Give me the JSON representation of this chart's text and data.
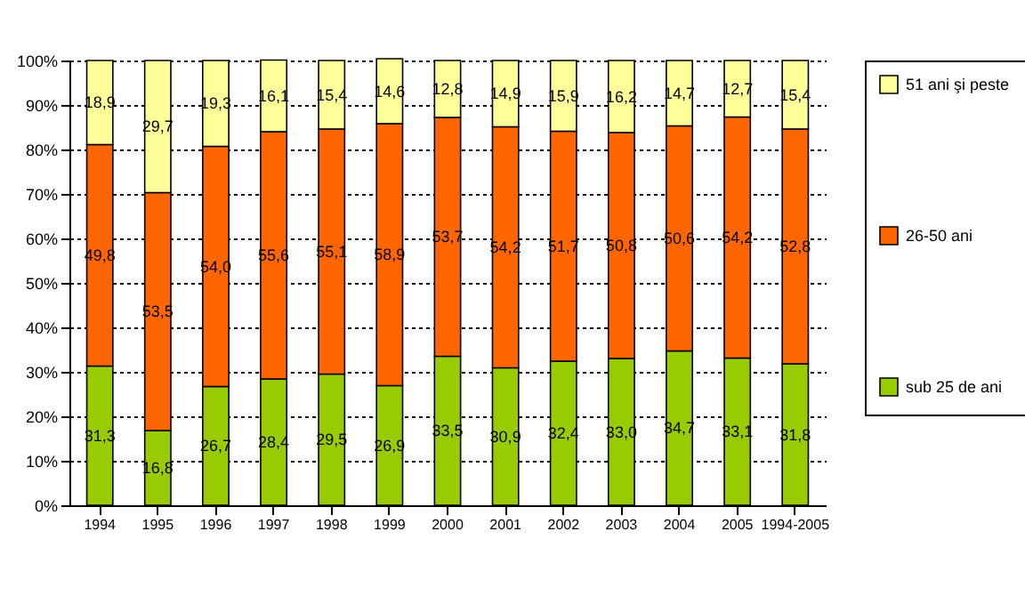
{
  "chart_data": {
    "type": "bar",
    "stacked": true,
    "grid": "y",
    "legend": "right",
    "categories": [
      "1994",
      "1995",
      "1996",
      "1997",
      "1998",
      "1999",
      "2000",
      "2001",
      "2002",
      "2003",
      "2004",
      "2005",
      "1994-2005"
    ],
    "ylim": [
      0,
      100
    ],
    "yticks": [
      {
        "value": 0,
        "label": "0%"
      },
      {
        "value": 10,
        "label": "10%"
      },
      {
        "value": 20,
        "label": "20%"
      },
      {
        "value": 30,
        "label": "30%"
      },
      {
        "value": 40,
        "label": "40%"
      },
      {
        "value": 50,
        "label": "50%"
      },
      {
        "value": 60,
        "label": "60%"
      },
      {
        "value": 70,
        "label": "70%"
      },
      {
        "value": 80,
        "label": "80%"
      },
      {
        "value": 90,
        "label": "90%"
      },
      {
        "value": 100,
        "label": "100%"
      }
    ],
    "series": [
      {
        "name": "sub 25 de ani",
        "color": "#99cc00",
        "values": [
          31.3,
          16.8,
          26.7,
          28.4,
          29.5,
          26.9,
          33.5,
          30.9,
          32.4,
          33.0,
          34.7,
          33.1,
          31.8
        ],
        "value_labels": [
          "31,3",
          "16,8",
          "26,7",
          "28,4",
          "29,5",
          "26,9",
          "33,5",
          "30,9",
          "32,4",
          "33,0",
          "34,7",
          "33,1",
          "31,8"
        ]
      },
      {
        "name": "26-50 ani",
        "color": "#ff6600",
        "values": [
          49.8,
          53.5,
          54.0,
          55.6,
          55.1,
          58.9,
          53.7,
          54.2,
          51.7,
          50.8,
          50.6,
          54.2,
          52.8
        ],
        "value_labels": [
          "49,8",
          "53,5",
          "54,0",
          "55,6",
          "55,1",
          "58,9",
          "53,7",
          "54,2",
          "51,7",
          "50,8",
          "50,6",
          "54,2",
          "52,8"
        ]
      },
      {
        "name": "51 ani şi peste",
        "color": "#ffff99",
        "values": [
          18.9,
          29.7,
          19.3,
          16.1,
          15.4,
          14.6,
          12.8,
          14.9,
          15.9,
          16.2,
          14.7,
          12.7,
          15.4
        ],
        "value_labels": [
          "18,9",
          "29,7",
          "19,3",
          "16,1",
          "15,4",
          "14,6",
          "12,8",
          "14,9",
          "15,9",
          "16,2",
          "14,7",
          "12,7",
          "15,4"
        ]
      }
    ]
  }
}
